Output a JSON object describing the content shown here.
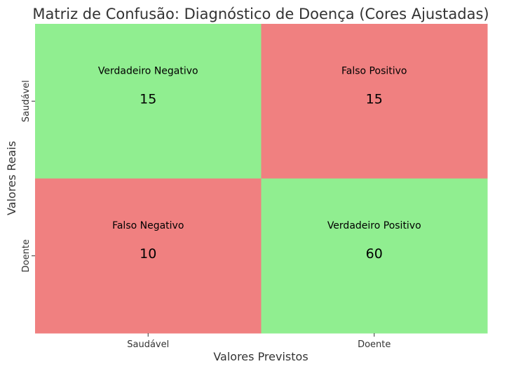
{
  "chart_data": {
    "type": "heatmap",
    "title": "Matriz de Confusão: Diagnóstico de Doença (Cores Ajustadas)",
    "xlabel": "Valores Previstos",
    "ylabel": "Valores Reais",
    "x_categories": [
      "Saudável",
      "Doente"
    ],
    "y_categories": [
      "Saudável",
      "Doente"
    ],
    "cells": [
      {
        "row": 0,
        "col": 0,
        "label": "Verdadeiro Negativo",
        "value": 15,
        "color": "#90ee90"
      },
      {
        "row": 0,
        "col": 1,
        "label": "Falso Positivo",
        "value": 15,
        "color": "#f08080"
      },
      {
        "row": 1,
        "col": 0,
        "label": "Falso Negativo",
        "value": 10,
        "color": "#f08080"
      },
      {
        "row": 1,
        "col": 1,
        "label": "Verdadeiro Positivo",
        "value": 60,
        "color": "#90ee90"
      }
    ],
    "grid": false,
    "legend": "none"
  }
}
